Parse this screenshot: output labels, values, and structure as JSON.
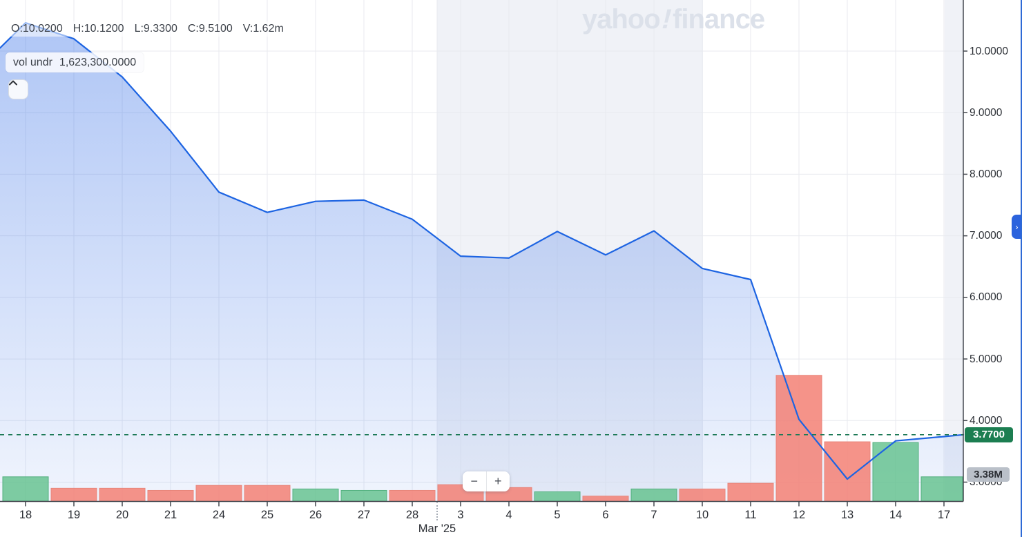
{
  "watermark": {
    "text_left": "yahoo",
    "mark": "!",
    "text_right": "finance"
  },
  "legend": {
    "ohlcv": [
      {
        "label": "O",
        "value": "10.0200"
      },
      {
        "label": "H",
        "value": "10.1200"
      },
      {
        "label": "L",
        "value": "9.3300"
      },
      {
        "label": "C",
        "value": "9.5100"
      },
      {
        "label": "V",
        "value": "1.62m"
      }
    ],
    "volume_row": {
      "label": "vol undr",
      "value": "1,623,300.0000"
    }
  },
  "controls": {
    "zoom_out_label": "−",
    "zoom_in_label": "+",
    "next_icon_glyph": "›"
  },
  "badges": {
    "last_price": "3.7700",
    "last_volume": "3.38M"
  },
  "axis": {
    "y_ticks": [
      "10.0000",
      "9.0000",
      "8.0000",
      "7.0000",
      "6.0000",
      "5.0000",
      "4.0000",
      "3.0000"
    ],
    "month_label": "Mar '25"
  },
  "chart_data": {
    "type": "area",
    "title": "",
    "x_labels": [
      "18",
      "19",
      "20",
      "21",
      "24",
      "25",
      "26",
      "27",
      "28",
      "3",
      "4",
      "5",
      "6",
      "7",
      "10",
      "11",
      "12",
      "13",
      "14",
      "17"
    ],
    "month_label": "Mar '25",
    "series": [
      {
        "name": "price_close",
        "values": [
          10.46,
          10.2,
          9.58,
          8.7,
          7.71,
          7.38,
          7.56,
          7.58,
          7.27,
          6.67,
          6.64,
          7.07,
          6.69,
          7.08,
          6.47,
          6.29,
          4.02,
          3.05,
          3.67,
          3.74
        ]
      },
      {
        "name": "volume_millions",
        "values": [
          3.4,
          1.8,
          1.8,
          1.5,
          2.2,
          2.2,
          1.7,
          1.5,
          1.5,
          2.3,
          1.9,
          1.3,
          0.7,
          1.7,
          1.7,
          2.5,
          17.6,
          8.3,
          8.2,
          3.4
        ],
        "direction": [
          "up",
          "down",
          "down",
          "down",
          "down",
          "down",
          "up",
          "up",
          "down",
          "down",
          "down",
          "up",
          "down",
          "up",
          "down",
          "down",
          "down",
          "down",
          "up",
          "up"
        ]
      }
    ],
    "edge_values": {
      "left_price": 10.05,
      "right_price": 3.77
    },
    "last_price": 3.77,
    "last_volume_label": "3.38M",
    "ylim": [
      2.69,
      10.83
    ],
    "grid": true,
    "legend_position": "top-left",
    "colors": {
      "line": "#1d64e2",
      "area_top": "rgba(47,106,230,0.40)",
      "area_bottom": "rgba(47,106,230,0.07)",
      "volume_up": "rgba(96,192,139,0.80)",
      "volume_up_stroke": "#53b07f",
      "volume_down": "rgba(243,128,116,0.85)",
      "volume_down_stroke": "#e8857a",
      "last_price_line": "#1e7a57",
      "last_price_badge": "#1c7e51",
      "grid": "#e8eaef",
      "week_band": "#f0f2f7",
      "axis_line": "#43474e"
    }
  }
}
